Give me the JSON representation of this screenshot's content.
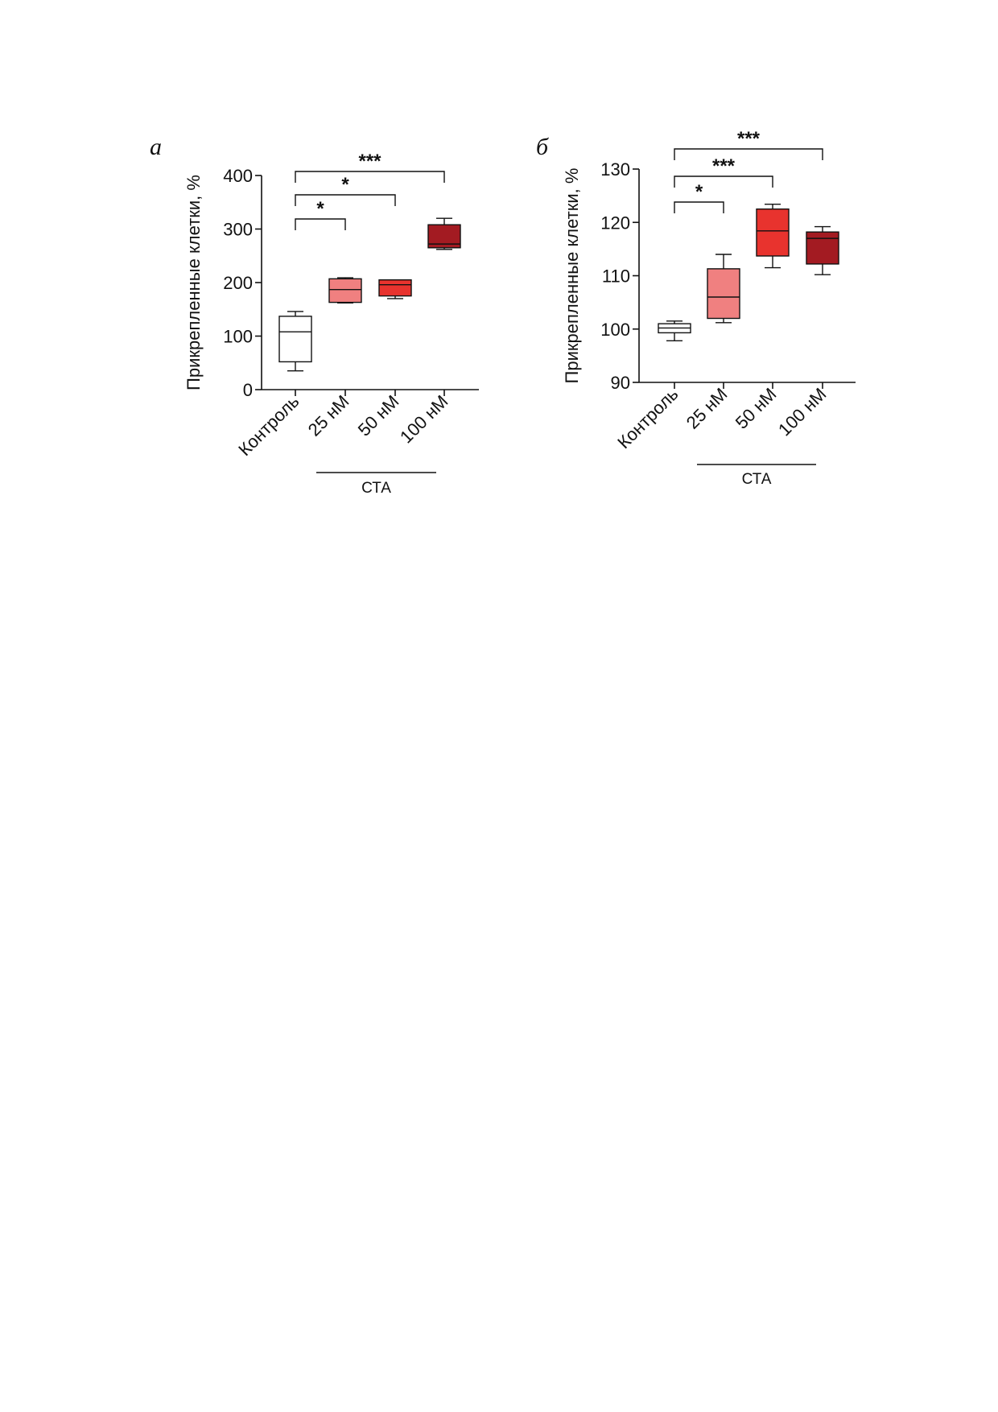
{
  "chart_data": [
    {
      "type": "box",
      "panel_label": "а",
      "ylabel": "Прикрепленные клетки, %",
      "ylim": [
        0,
        400
      ],
      "yticks": [
        0,
        100,
        200,
        300,
        400
      ],
      "categories": [
        "Контроль",
        "25 нМ",
        "50 нМ",
        "100 нМ"
      ],
      "group_label": "СТА",
      "group_span": [
        "25 нМ",
        "100 нМ"
      ],
      "box_colors": [
        "#ffffff",
        "#f08080",
        "#e8332e",
        "#a31b22"
      ],
      "boxes": [
        {
          "min": 35,
          "q1": 52,
          "median": 108,
          "q3": 137,
          "max": 146
        },
        {
          "min": 162,
          "q1": 163,
          "median": 187,
          "q3": 207,
          "max": 209
        },
        {
          "min": 170,
          "q1": 175,
          "median": 196,
          "q3": 205,
          "max": 205
        },
        {
          "min": 262,
          "q1": 265,
          "median": 272,
          "q3": 308,
          "max": 320
        }
      ],
      "significance": [
        {
          "from": "Контроль",
          "to": "25 нМ",
          "label": "*"
        },
        {
          "from": "Контроль",
          "to": "50 нМ",
          "label": "*"
        },
        {
          "from": "Контроль",
          "to": "100 нМ",
          "label": "***"
        }
      ]
    },
    {
      "type": "box",
      "panel_label": "б",
      "ylabel": "Прикрепленные клетки, %",
      "ylim": [
        90,
        130
      ],
      "yticks": [
        90,
        100,
        110,
        120,
        130
      ],
      "categories": [
        "Контроль",
        "25 нМ",
        "50 нМ",
        "100 нМ"
      ],
      "group_label": "СТА",
      "group_span": [
        "25 нМ",
        "100 нМ"
      ],
      "box_colors": [
        "#ffffff",
        "#f08080",
        "#e8332e",
        "#a31b22"
      ],
      "boxes": [
        {
          "min": 97.8,
          "q1": 99.3,
          "median": 100.2,
          "q3": 101.0,
          "max": 101.5
        },
        {
          "min": 101.2,
          "q1": 102.0,
          "median": 106.0,
          "q3": 111.3,
          "max": 114.0
        },
        {
          "min": 111.5,
          "q1": 113.7,
          "median": 118.4,
          "q3": 122.5,
          "max": 123.4
        },
        {
          "min": 110.2,
          "q1": 112.2,
          "median": 117.0,
          "q3": 118.2,
          "max": 119.2
        }
      ],
      "significance": [
        {
          "from": "Контроль",
          "to": "25 нМ",
          "label": "*"
        },
        {
          "from": "Контроль",
          "to": "50 нМ",
          "label": "***"
        },
        {
          "from": "Контроль",
          "to": "100 нМ",
          "label": "***"
        }
      ]
    }
  ]
}
